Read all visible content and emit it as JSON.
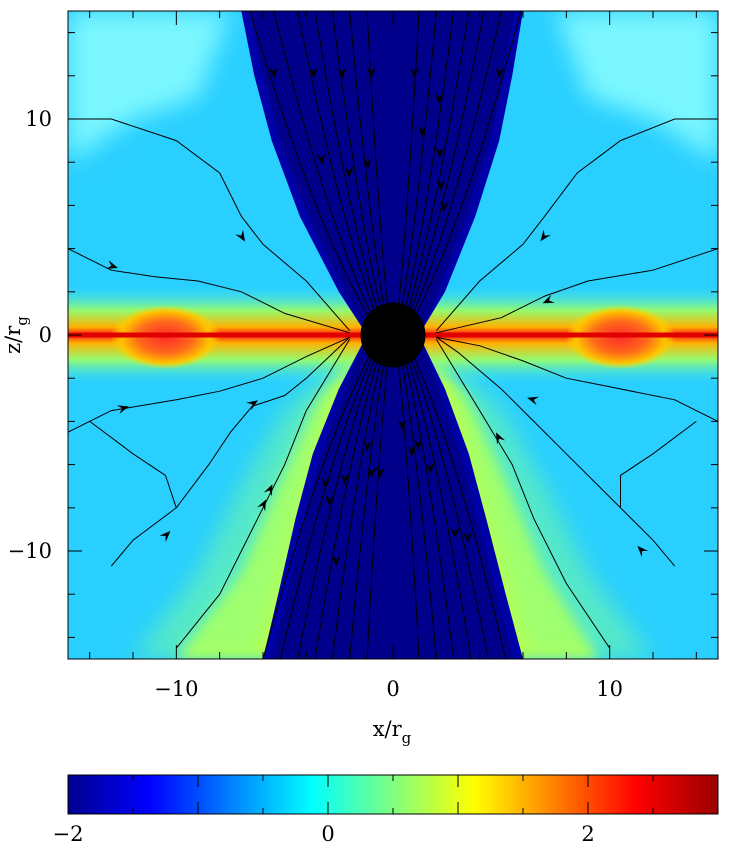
{
  "chart_data": {
    "type": "heatmap",
    "title": "",
    "xlabel": {
      "base": "x/r",
      "sub": "g"
    },
    "ylabel": {
      "base": "z/r",
      "sub": "g"
    },
    "xlim": [
      -15,
      15
    ],
    "ylim": [
      -15,
      15
    ],
    "x_ticks": [
      -10,
      0,
      10
    ],
    "y_ticks": [
      -10,
      0,
      10
    ],
    "x_tick_labels": [
      "−10",
      "0",
      "10"
    ],
    "y_tick_labels": [
      "−10",
      "0",
      "10"
    ],
    "colorbar": {
      "range": [
        -2,
        3
      ],
      "ticks": [
        -2,
        0,
        2
      ],
      "tick_labels": [
        "−2",
        "0",
        "2"
      ],
      "colormap": [
        "#00008f",
        "#0000ff",
        "#00ffff",
        "#ffff00",
        "#ff0000",
        "#800000"
      ]
    },
    "black_hole": {
      "center": [
        0,
        0
      ],
      "radius": 1.5,
      "color": "#000000"
    },
    "disk": {
      "plane": "z=0",
      "peak_value": 2.7,
      "hot_blobs_at_x": [
        -10.5,
        10.5
      ]
    },
    "funnel": {
      "value": -2,
      "half_opening_x_at_top": [
        -7,
        6
      ],
      "half_opening_x_at_bottom": [
        -6,
        5.5
      ]
    },
    "field_lines": [
      {
        "id": "L1",
        "points": [
          [
            -15,
            10
          ],
          [
            -13,
            10
          ],
          [
            -10,
            9
          ],
          [
            -8,
            7.5
          ],
          [
            -7,
            5.5
          ],
          [
            -6,
            4.2
          ],
          [
            -4,
            2.5
          ],
          [
            -2,
            0.2
          ]
        ],
        "arrows_at": [
          [
            -7,
            4.6
          ]
        ]
      },
      {
        "id": "L2",
        "points": [
          [
            -15,
            4
          ],
          [
            -13,
            3
          ],
          [
            -11,
            2.7
          ],
          [
            -9,
            2.5
          ],
          [
            -7,
            2
          ],
          [
            -5,
            1
          ],
          [
            -2,
            0.1
          ]
        ],
        "arrows_at": [
          [
            -13,
            3.2
          ]
        ]
      },
      {
        "id": "L3",
        "points": [
          [
            -15,
            -4.5
          ],
          [
            -13,
            -3.5
          ],
          [
            -10,
            -3
          ],
          [
            -8,
            -2.6
          ],
          [
            -6,
            -2
          ],
          [
            -4,
            -1
          ],
          [
            -2,
            -0.1
          ]
        ],
        "arrows_at": [
          [
            -12.5,
            -3.4
          ]
        ]
      },
      {
        "id": "L4",
        "points": [
          [
            -13,
            -10.7
          ],
          [
            -12,
            -9.5
          ],
          [
            -10,
            -8
          ],
          [
            -8.5,
            -6
          ],
          [
            -7.5,
            -4.5
          ],
          [
            -6.5,
            -3.3
          ],
          [
            -5,
            -2.8
          ],
          [
            -4,
            -2
          ],
          [
            -2,
            -0.1
          ]
        ],
        "arrows_at": [
          [
            -10.5,
            -9.3
          ],
          [
            -6.5,
            -3.2
          ]
        ]
      },
      {
        "id": "L5",
        "points": [
          [
            -10,
            -14.5
          ],
          [
            -8,
            -12
          ],
          [
            -6.5,
            -9
          ],
          [
            -5,
            -6
          ],
          [
            -4,
            -3.5
          ],
          [
            -2,
            -0.2
          ]
        ],
        "arrows_at": [
          [
            -6,
            -7.9
          ],
          [
            -5.7,
            -7.2
          ]
        ]
      },
      {
        "id": "L6",
        "points": [
          [
            -14,
            -4
          ],
          [
            -12,
            -5.5
          ],
          [
            -10.5,
            -6.5
          ],
          [
            -10,
            -8
          ]
        ],
        "arrows_at": []
      },
      {
        "id": "R1",
        "points": [
          [
            15,
            10
          ],
          [
            13,
            10
          ],
          [
            10.5,
            9
          ],
          [
            8.5,
            7.5
          ],
          [
            7,
            5.5
          ],
          [
            6,
            4.2
          ],
          [
            4,
            2.5
          ],
          [
            2,
            0.2
          ]
        ],
        "arrows_at": [
          [
            7,
            4.6
          ]
        ]
      },
      {
        "id": "R2",
        "points": [
          [
            15,
            4
          ],
          [
            12,
            3
          ],
          [
            9,
            2.5
          ],
          [
            7,
            1.8
          ],
          [
            5,
            0.8
          ],
          [
            2,
            0.1
          ]
        ],
        "arrows_at": [
          [
            7.2,
            1.6
          ]
        ]
      },
      {
        "id": "R3",
        "points": [
          [
            15,
            -4
          ],
          [
            13,
            -3
          ],
          [
            10,
            -2.4
          ],
          [
            8,
            -2
          ],
          [
            6,
            -1.2
          ],
          [
            4,
            -0.5
          ],
          [
            2,
            -0.1
          ]
        ],
        "arrows_at": [
          [
            6.5,
            -3
          ]
        ]
      },
      {
        "id": "R4",
        "points": [
          [
            13,
            -10.7
          ],
          [
            12,
            -9.5
          ],
          [
            10,
            -7.5
          ],
          [
            8,
            -5.5
          ],
          [
            6.5,
            -4
          ],
          [
            5,
            -2.5
          ],
          [
            3,
            -0.8
          ],
          [
            2,
            -0.1
          ]
        ],
        "arrows_at": [
          [
            11.5,
            -10
          ]
        ]
      },
      {
        "id": "R5",
        "points": [
          [
            10,
            -14.5
          ],
          [
            8,
            -11.5
          ],
          [
            6.5,
            -8.5
          ],
          [
            5.5,
            -6
          ],
          [
            4,
            -3.5
          ],
          [
            2,
            -0.2
          ]
        ],
        "arrows_at": [
          [
            4.9,
            -4.8
          ]
        ]
      },
      {
        "id": "R6",
        "points": [
          [
            14,
            -4
          ],
          [
            12,
            -5.5
          ],
          [
            10.5,
            -6.5
          ],
          [
            10.5,
            -8
          ]
        ],
        "arrows_at": []
      }
    ],
    "jet_lines_top": {
      "x_top": [
        -6.6,
        -5.5,
        -4.4,
        -3.6,
        -2.8,
        -2.0,
        -1.2,
        1.2,
        2.0,
        2.8,
        3.5,
        4.2,
        5.0,
        5.9
      ],
      "arrows_y": [
        12.2,
        8.2,
        12.2,
        7.6,
        12.2,
        8.0,
        12.2,
        12.2,
        9.5,
        11.0,
        8.5,
        7.0,
        6.0,
        12.2
      ]
    },
    "jet_lines_bottom": {
      "x_bottom": [
        -6.0,
        -5.2,
        -4.4,
        -3.6,
        -2.8,
        -2.0,
        -1.2,
        1.2,
        2.0,
        2.8,
        3.6,
        4.4,
        5.2
      ],
      "arrows_y": [
        -6.8,
        -7.6,
        -6.6,
        -10.4,
        -5.1,
        -6.3,
        -6.3,
        -4.1,
        -5.3,
        -5.0,
        -6.1,
        -9.1,
        -9.3
      ]
    }
  }
}
